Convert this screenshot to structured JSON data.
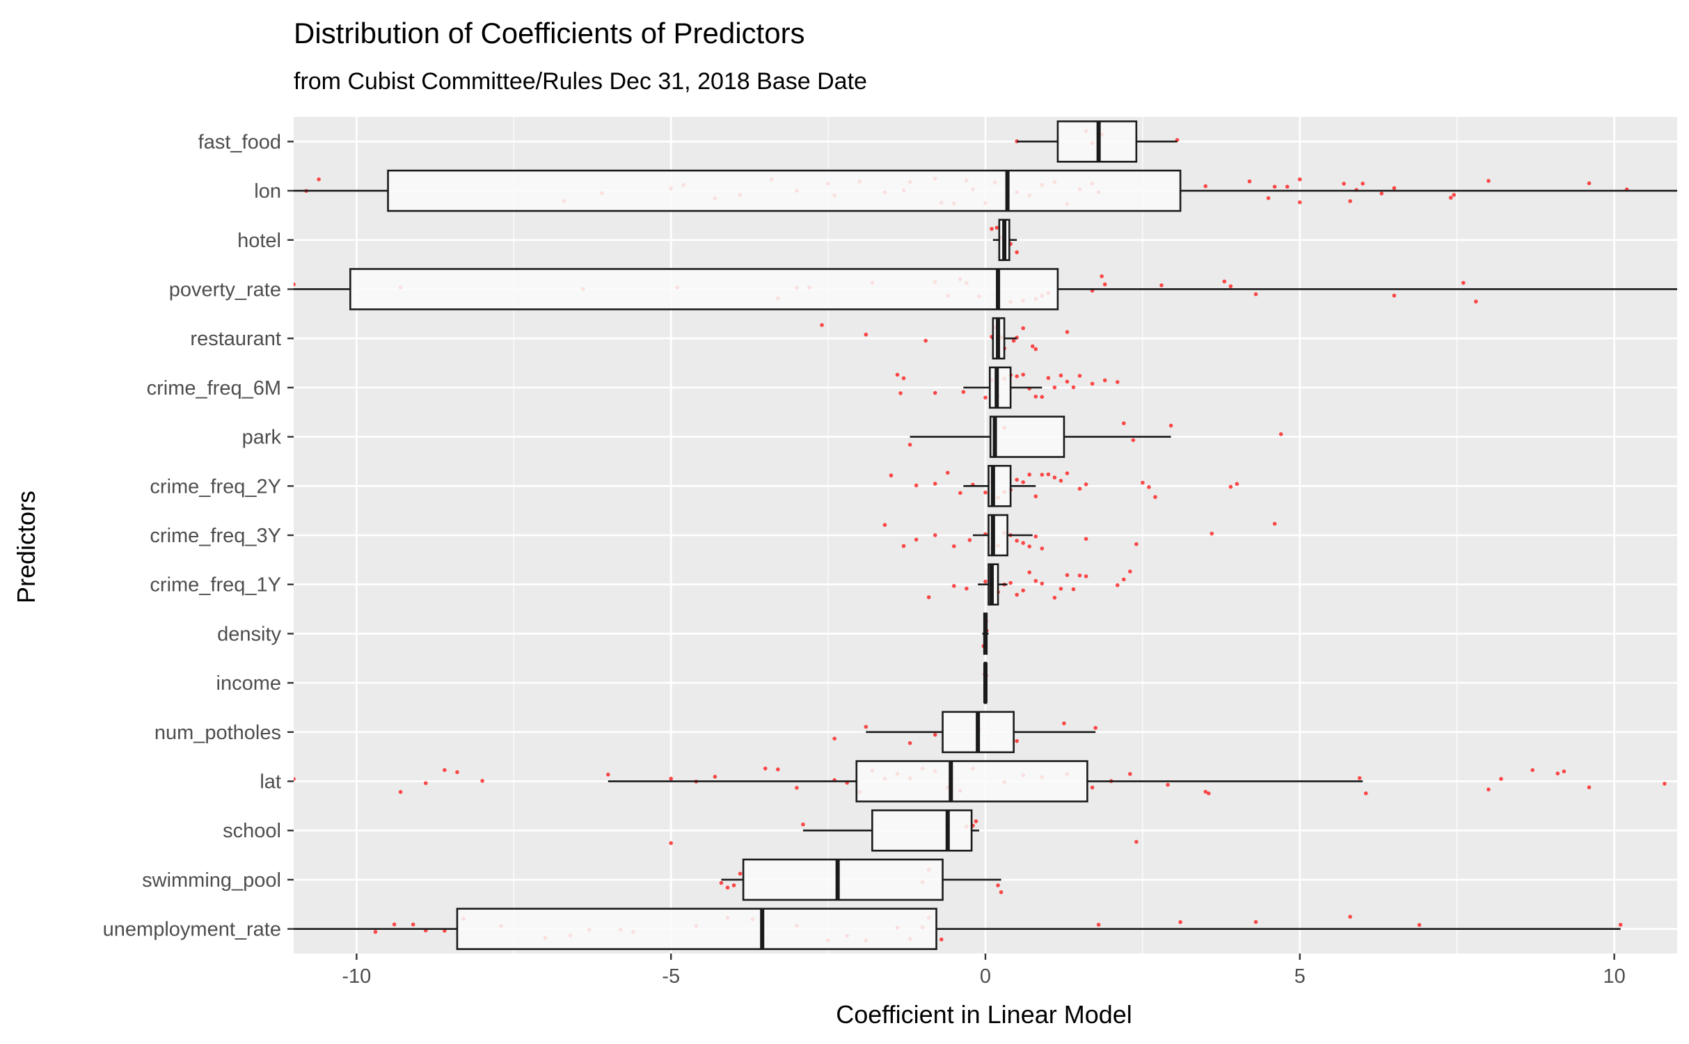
{
  "chart_data": {
    "type": "boxplot",
    "orientation": "horizontal",
    "title": "Distribution of Coefficients of Predictors",
    "subtitle": "from Cubist Committee/Rules  Dec 31, 2018 Base Date",
    "xlabel": "Coefficient in Linear Model",
    "ylabel": "Predictors",
    "xlim": [
      -11,
      11
    ],
    "x_ticks": [
      -10,
      -5,
      0,
      5,
      10
    ],
    "x_tick_labels": [
      "-10",
      "-5",
      "0",
      "5",
      "10"
    ],
    "grid": true,
    "colors": {
      "panel": "#EBEBEB",
      "grid": "#FFFFFF",
      "box_fill": "#FAFAFA",
      "box_line": "#1A1A1A",
      "points": "#FF0000"
    },
    "categories": [
      "fast_food",
      "lon",
      "hotel",
      "poverty_rate",
      "restaurant",
      "crime_freq_6M",
      "park",
      "crime_freq_2Y",
      "crime_freq_3Y",
      "crime_freq_1Y",
      "density",
      "income",
      "num_potholes",
      "lat",
      "school",
      "swimming_pool",
      "unemployment_rate"
    ],
    "boxes": [
      {
        "name": "fast_food",
        "whisker_low": 0.5,
        "q1": 1.15,
        "median": 1.8,
        "q3": 2.4,
        "whisker_high": 3.05
      },
      {
        "name": "lon",
        "whisker_low": -11,
        "q1": -9.5,
        "median": 0.35,
        "q3": 3.1,
        "whisker_high": 11
      },
      {
        "name": "hotel",
        "whisker_low": 0.12,
        "q1": 0.22,
        "median": 0.3,
        "q3": 0.38,
        "whisker_high": 0.5
      },
      {
        "name": "poverty_rate",
        "whisker_low": -11,
        "q1": -10.1,
        "median": 0.2,
        "q3": 1.15,
        "whisker_high": 11
      },
      {
        "name": "restaurant",
        "whisker_low": 0.1,
        "q1": 0.12,
        "median": 0.2,
        "q3": 0.3,
        "whisker_high": 0.5
      },
      {
        "name": "crime_freq_6M",
        "whisker_low": -0.35,
        "q1": 0.07,
        "median": 0.18,
        "q3": 0.4,
        "whisker_high": 0.9
      },
      {
        "name": "park",
        "whisker_low": -1.2,
        "q1": 0.08,
        "median": 0.15,
        "q3": 1.25,
        "whisker_high": 2.95
      },
      {
        "name": "crime_freq_2Y",
        "whisker_low": -0.35,
        "q1": 0.05,
        "median": 0.12,
        "q3": 0.4,
        "whisker_high": 0.8
      },
      {
        "name": "crime_freq_3Y",
        "whisker_low": -0.2,
        "q1": 0.05,
        "median": 0.12,
        "q3": 0.35,
        "whisker_high": 0.75
      },
      {
        "name": "crime_freq_1Y",
        "whisker_low": -0.12,
        "q1": 0.05,
        "median": 0.1,
        "q3": 0.2,
        "whisker_high": 0.35
      },
      {
        "name": "density",
        "whisker_low": -0.05,
        "q1": -0.02,
        "median": 0.0,
        "q3": 0.02,
        "whisker_high": 0.05
      },
      {
        "name": "income",
        "whisker_low": -0.03,
        "q1": -0.01,
        "median": 0.0,
        "q3": 0.01,
        "whisker_high": 0.03
      },
      {
        "name": "num_potholes",
        "whisker_low": -1.9,
        "q1": -0.68,
        "median": -0.12,
        "q3": 0.45,
        "whisker_high": 1.75
      },
      {
        "name": "lat",
        "whisker_low": -6.0,
        "q1": -2.05,
        "median": -0.55,
        "q3": 1.62,
        "whisker_high": 6.0
      },
      {
        "name": "school",
        "whisker_low": -2.9,
        "q1": -1.8,
        "median": -0.6,
        "q3": -0.22,
        "whisker_high": -0.1
      },
      {
        "name": "swimming_pool",
        "whisker_low": -4.2,
        "q1": -3.85,
        "median": -2.35,
        "q3": -0.68,
        "whisker_high": 0.25
      },
      {
        "name": "unemployment_rate",
        "whisker_low": -11,
        "q1": -8.4,
        "median": -3.55,
        "q3": -0.78,
        "whisker_high": 10.1
      }
    ],
    "points": {
      "fast_food": [
        0.5,
        1.7,
        1.6,
        1.85,
        3.05
      ],
      "lon": [
        -10.8,
        -10.6,
        -6.7,
        -6.1,
        -5.0,
        -4.8,
        -4.3,
        -3.9,
        -3.4,
        -3.0,
        -2.5,
        -2.4,
        -2.0,
        -1.6,
        -1.3,
        -1.2,
        -0.8,
        -0.7,
        -0.5,
        -0.3,
        -0.2,
        0.0,
        0.15,
        0.35,
        0.5,
        0.7,
        0.9,
        1.1,
        1.3,
        1.5,
        1.7,
        1.8,
        3.5,
        4.2,
        4.5,
        4.6,
        4.8,
        5.0,
        5.0,
        5.7,
        5.8,
        5.9,
        6.0,
        6.3,
        6.5,
        7.4,
        7.45,
        8.0,
        9.6,
        10.2
      ],
      "hotel": [
        0.1,
        0.18,
        0.25,
        0.3,
        0.4,
        0.5
      ],
      "poverty_rate": [
        -11,
        -9.3,
        -6.4,
        -4.9,
        -3.3,
        -3.0,
        -2.8,
        -1.8,
        -0.8,
        -0.6,
        -0.4,
        -0.3,
        -0.1,
        0.2,
        0.4,
        0.6,
        0.8,
        0.9,
        1.0,
        1.7,
        1.85,
        1.9,
        2.8,
        3.8,
        3.9,
        4.3,
        6.5,
        7.6,
        7.8
      ],
      "restaurant": [
        -2.6,
        -1.9,
        -0.95,
        0.1,
        0.15,
        0.2,
        0.25,
        0.3,
        0.45,
        0.5,
        0.6,
        0.75,
        0.8,
        1.3
      ],
      "crime_freq_6M": [
        -1.4,
        -1.3,
        -1.35,
        -0.8,
        -0.35,
        0.0,
        0.1,
        0.2,
        0.3,
        0.4,
        0.5,
        0.6,
        0.7,
        0.8,
        0.9,
        1.0,
        1.1,
        1.2,
        1.3,
        1.4,
        1.5,
        1.7,
        1.9,
        2.1
      ],
      "park": [
        -1.2,
        0.15,
        0.3,
        2.2,
        2.35,
        2.95,
        4.7
      ],
      "crime_freq_2Y": [
        -1.5,
        -1.1,
        -0.8,
        -0.6,
        -0.4,
        -0.2,
        0.0,
        0.1,
        0.2,
        0.3,
        0.4,
        0.5,
        0.6,
        0.7,
        0.8,
        0.9,
        1.0,
        1.1,
        1.2,
        1.3,
        1.5,
        1.6,
        2.5,
        2.6,
        2.7,
        3.9,
        4.0
      ],
      "crime_freq_3Y": [
        -1.6,
        -1.3,
        -1.1,
        -0.8,
        -0.5,
        -0.25,
        0.0,
        0.1,
        0.2,
        0.3,
        0.4,
        0.5,
        0.6,
        0.7,
        0.8,
        0.9,
        1.6,
        2.4,
        3.6,
        4.6
      ],
      "crime_freq_1Y": [
        -0.9,
        -0.5,
        -0.3,
        0.0,
        0.1,
        0.2,
        0.3,
        0.4,
        0.5,
        0.6,
        0.7,
        0.8,
        0.9,
        1.1,
        1.2,
        1.3,
        1.4,
        1.5,
        1.6,
        2.1,
        2.2,
        2.3
      ],
      "density": [
        -0.03,
        -0.01,
        0.01,
        0.02
      ],
      "income": [
        -0.01,
        0.0,
        0.01
      ],
      "num_potholes": [
        -2.4,
        -1.9,
        -1.2,
        -0.8,
        -0.1,
        0.5,
        1.25,
        1.75
      ],
      "lat": [
        -11,
        -9.3,
        -8.9,
        -8.6,
        -8.4,
        -8.0,
        -6.0,
        -5.0,
        -4.6,
        -4.3,
        -3.5,
        -3.3,
        -3.0,
        -2.4,
        -2.2,
        -2.0,
        -1.8,
        -1.6,
        -1.4,
        -1.2,
        -1.0,
        -0.8,
        -0.6,
        -0.4,
        -0.2,
        0.3,
        0.6,
        0.9,
        1.3,
        1.7,
        2.0,
        2.3,
        2.9,
        3.5,
        3.55,
        5.95,
        6.05,
        8.0,
        8.2,
        8.7,
        9.1,
        9.2,
        9.6,
        10.8
      ],
      "school": [
        -5.0,
        -2.9,
        -0.3,
        -0.2,
        -0.15,
        2.4
      ],
      "swimming_pool": [
        -4.2,
        -4.1,
        -4.0,
        -3.9,
        -1.0,
        -0.9,
        0.2,
        0.25
      ],
      "unemployment_rate": [
        -9.7,
        -9.4,
        -9.1,
        -8.9,
        -8.6,
        -8.3,
        -7.7,
        -7.0,
        -6.6,
        -6.3,
        -5.8,
        -5.6,
        -4.6,
        -4.1,
        -3.7,
        -3.0,
        -2.5,
        -2.2,
        -1.9,
        -1.4,
        -1.2,
        -1.0,
        -0.9,
        -0.7,
        1.8,
        3.1,
        4.3,
        5.8,
        6.9,
        10.1
      ]
    }
  }
}
